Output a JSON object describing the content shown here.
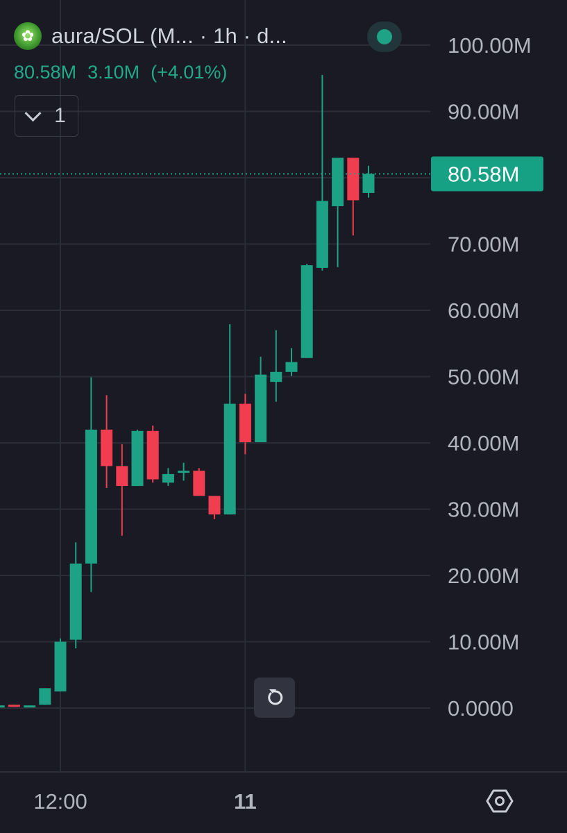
{
  "header": {
    "pair_label": "aura/SOL (M... · 1h · d...",
    "logo_icon": "aura-token-icon",
    "status_color": "#1fa386"
  },
  "legend": {
    "last_value": "80.58M",
    "change_value": "3.10M",
    "change_percent": "(+4.01%)",
    "collapse_count": "1"
  },
  "price_scale": {
    "ticks": [
      "100.00M",
      "90.00M",
      "80.58M",
      "70.00M",
      "60.00M",
      "50.00M",
      "40.00M",
      "30.00M",
      "20.00M",
      "10.00M",
      "0.0000"
    ],
    "current_price_label": "80.58M"
  },
  "time_scale": {
    "ticks": [
      "12:00",
      "11"
    ]
  },
  "colors": {
    "background": "#191a24",
    "up": "#1ea285",
    "down": "#f03d4f",
    "grid": "#2a2c37",
    "price_badge": "#16a184"
  },
  "chart_data": {
    "type": "candlestick",
    "interval": "1h",
    "y_unit": "M",
    "ylim": [
      -3,
      103
    ],
    "y_ticks": [
      0,
      10,
      20,
      30,
      40,
      50,
      60,
      70,
      80,
      90,
      100
    ],
    "current_price": 80.58,
    "x_ticks": [
      {
        "label": "12:00",
        "index": 5
      },
      {
        "label": "11",
        "index": 17
      }
    ],
    "grid": true,
    "candles": [
      {
        "o": 0.4,
        "h": 0.4,
        "l": 0.4,
        "c": 0.4
      },
      {
        "o": 0.4,
        "h": 0.4,
        "l": 0.4,
        "c": 0.4
      },
      {
        "o": 0.5,
        "h": 0.5,
        "l": 0.4,
        "c": 0.4
      },
      {
        "o": 0.4,
        "h": 0.4,
        "l": 0.4,
        "c": 0.4
      },
      {
        "o": 0.5,
        "h": 3.0,
        "l": 0.5,
        "c": 3.0
      },
      {
        "o": 2.5,
        "h": 10.5,
        "l": 2.5,
        "c": 10.0
      },
      {
        "o": 10.3,
        "h": 25.0,
        "l": 9.0,
        "c": 21.8
      },
      {
        "o": 21.8,
        "h": 49.9,
        "l": 17.5,
        "c": 42.0
      },
      {
        "o": 42.0,
        "h": 47.2,
        "l": 33.2,
        "c": 36.5
      },
      {
        "o": 36.5,
        "h": 39.8,
        "l": 26.0,
        "c": 33.5
      },
      {
        "o": 33.5,
        "h": 42.0,
        "l": 33.5,
        "c": 41.8
      },
      {
        "o": 41.8,
        "h": 42.6,
        "l": 34.0,
        "c": 34.5
      },
      {
        "o": 34.0,
        "h": 36.2,
        "l": 33.5,
        "c": 35.3
      },
      {
        "o": 35.5,
        "h": 37.0,
        "l": 34.3,
        "c": 35.8
      },
      {
        "o": 35.8,
        "h": 36.2,
        "l": 32.0,
        "c": 32.0
      },
      {
        "o": 32.0,
        "h": 32.0,
        "l": 28.5,
        "c": 29.2
      },
      {
        "o": 29.2,
        "h": 57.9,
        "l": 29.2,
        "c": 45.9
      },
      {
        "o": 45.9,
        "h": 47.4,
        "l": 38.3,
        "c": 40.1
      },
      {
        "o": 40.1,
        "h": 53.0,
        "l": 40.1,
        "c": 50.3
      },
      {
        "o": 49.2,
        "h": 57.0,
        "l": 46.2,
        "c": 50.7
      },
      {
        "o": 50.7,
        "h": 54.3,
        "l": 50.1,
        "c": 52.2
      },
      {
        "o": 52.8,
        "h": 67.0,
        "l": 52.8,
        "c": 66.8
      },
      {
        "o": 66.4,
        "h": 95.5,
        "l": 66.0,
        "c": 76.5
      },
      {
        "o": 75.7,
        "h": 83.0,
        "l": 66.5,
        "c": 83.0
      },
      {
        "o": 83.0,
        "h": 83.0,
        "l": 71.3,
        "c": 76.6
      },
      {
        "o": 77.7,
        "h": 81.8,
        "l": 77.0,
        "c": 80.58
      }
    ]
  }
}
